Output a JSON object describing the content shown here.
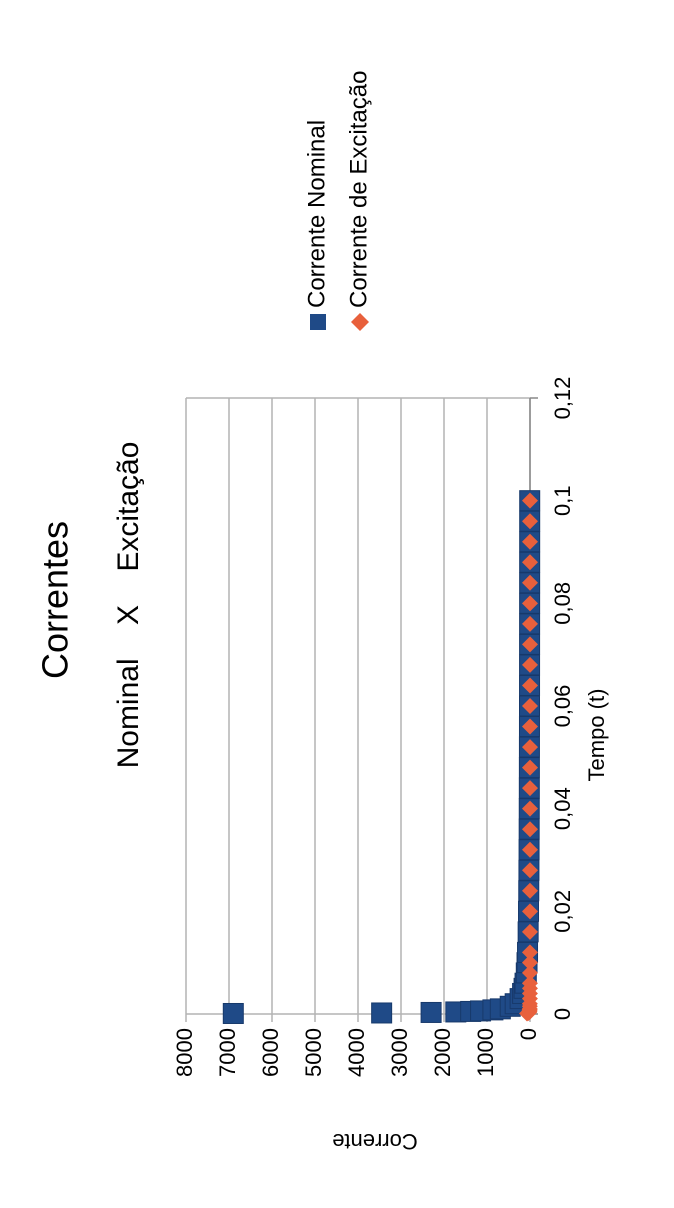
{
  "chart_data": {
    "type": "scatter",
    "title": "Correntes",
    "subtitle": "Nominal    X    Excitação",
    "x_label": "Tempo (t)",
    "y_label": "Corrente",
    "x": [
      0.0001,
      0.0002,
      0.0003,
      0.0004,
      0.0005,
      0.0006,
      0.0008,
      0.001,
      0.0015,
      0.002,
      0.003,
      0.004,
      0.005,
      0.006,
      0.008,
      0.01,
      0.012,
      0.016,
      0.02,
      0.024,
      0.028,
      0.032,
      0.036,
      0.04,
      0.044,
      0.048,
      0.052,
      0.056,
      0.06,
      0.064,
      0.068,
      0.072,
      0.076,
      0.08,
      0.084,
      0.088,
      0.092,
      0.096,
      0.1
    ],
    "series": [
      {
        "name": "Corrente Nominal",
        "color": "#1f4a87",
        "marker": "square",
        "values": [
          6900,
          3450,
          2300,
          1725,
          1380,
          1150,
          862.5,
          690,
          460,
          345,
          230,
          172.5,
          138,
          115,
          86.25,
          69,
          57.5,
          43.1,
          34.5,
          28.8,
          24.6,
          21.6,
          19.2,
          17.3,
          15.7,
          14.4,
          13.3,
          12.3,
          11.5,
          10.8,
          10.1,
          9.6,
          9.1,
          8.6,
          8.2,
          7.8,
          7.5,
          7.2,
          6.9
        ]
      },
      {
        "name": "Corrente de Excitação",
        "color": "#e8603c",
        "marker": "diamond",
        "values": [
          69,
          34.5,
          23,
          17.25,
          13.8,
          11.5,
          8.6,
          6.9,
          4.6,
          3.45,
          2.3,
          1.7,
          1.4,
          1.15,
          0.86,
          0.69,
          0.58,
          0.43,
          0.35,
          0.29,
          0.25,
          0.22,
          0.19,
          0.17,
          0.16,
          0.14,
          0.13,
          0.12,
          0.12,
          0.11,
          0.1,
          0.1,
          0.09,
          0.09,
          0.08,
          0.08,
          0.08,
          0.07,
          0.07
        ]
      }
    ],
    "xlim": [
      0,
      0.12
    ],
    "xticks": [
      0,
      {
        "value": 0.02,
        "label": "0,02"
      },
      {
        "value": 0.04,
        "label": "0,04"
      },
      {
        "value": 0.06,
        "label": "0,06"
      },
      {
        "value": 0.08,
        "label": "0,08"
      },
      {
        "value": 0.1,
        "label": "0,1"
      },
      {
        "value": 0.12,
        "label": "0,12"
      }
    ],
    "ylim": [
      0,
      8000
    ],
    "yticks": [
      0,
      1000,
      2000,
      3000,
      4000,
      5000,
      6000,
      7000,
      8000
    ],
    "grid": true,
    "legend": "right"
  }
}
